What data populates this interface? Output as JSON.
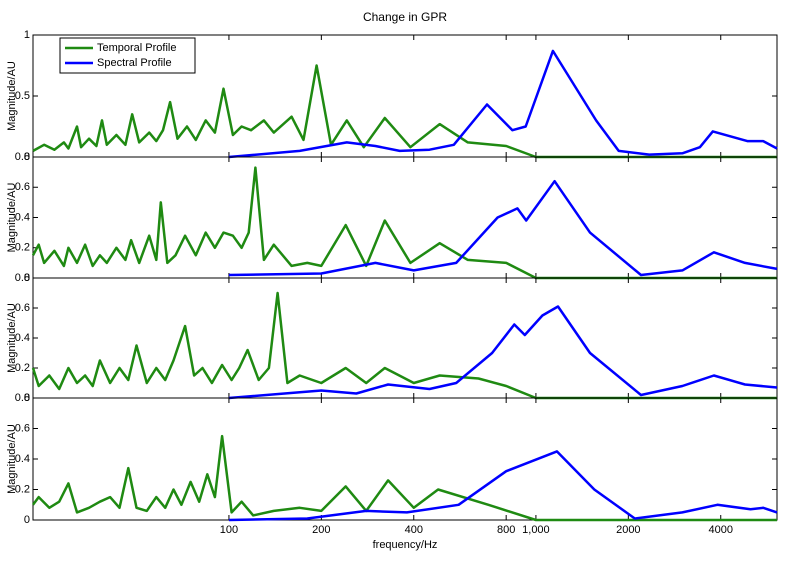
{
  "chart_data": [
    {
      "type": "line",
      "title": "Change in GPR",
      "ylabel": "Magnitude/AU",
      "log_x": true,
      "xlim": [
        23,
        6100
      ],
      "ylim": [
        0,
        1
      ],
      "yticks": [
        0,
        0.5,
        1
      ],
      "legend": "upper-left",
      "series": [
        {
          "name": "Temporal Profile",
          "color": "#1f8a12",
          "x": [
            23,
            25,
            27,
            29,
            30,
            32,
            33,
            35,
            37,
            38.6,
            40,
            43,
            46,
            48.4,
            51,
            55,
            58,
            61,
            64.3,
            68,
            73,
            78,
            84,
            90,
            96,
            103,
            110,
            118,
            130,
            140,
            160,
            175,
            193,
            215,
            242,
            275,
            322,
            390,
            486,
            600,
            800,
            1000,
            6100
          ],
          "values": [
            0.05,
            0.1,
            0.06,
            0.12,
            0.07,
            0.25,
            0.08,
            0.15,
            0.09,
            0.3,
            0.1,
            0.18,
            0.1,
            0.35,
            0.12,
            0.2,
            0.13,
            0.22,
            0.45,
            0.15,
            0.25,
            0.14,
            0.3,
            0.2,
            0.56,
            0.18,
            0.25,
            0.22,
            0.3,
            0.2,
            0.33,
            0.14,
            0.75,
            0.1,
            0.3,
            0.08,
            0.32,
            0.08,
            0.27,
            0.12,
            0.09,
            0,
            0
          ]
        },
        {
          "name": "Spectral Profile",
          "color": "#0000ff",
          "x": [
            100,
            170,
            242,
            300,
            360,
            450,
            540,
            693,
            838,
            926,
            1136,
            1570,
            1860,
            2340,
            3000,
            3420,
            3770,
            4880,
            5500,
            6100
          ],
          "values": [
            0,
            0.05,
            0.12,
            0.09,
            0.05,
            0.06,
            0.1,
            0.43,
            0.22,
            0.25,
            0.87,
            0.3,
            0.05,
            0.02,
            0.03,
            0.08,
            0.21,
            0.13,
            0.13,
            0.07
          ]
        }
      ]
    },
    {
      "type": "line",
      "ylabel": "Magnitude/AU",
      "log_x": true,
      "xlim": [
        23,
        6100
      ],
      "ylim": [
        0,
        0.8
      ],
      "yticks": [
        0,
        0.2,
        0.4,
        0.6,
        0.8
      ],
      "series": [
        {
          "color": "#1f8a12",
          "x": [
            23,
            24,
            25,
            27,
            29,
            30,
            32,
            34,
            36,
            38,
            40,
            43,
            46,
            48,
            51,
            55,
            58,
            60,
            63,
            67,
            72,
            78,
            84,
            90,
            96,
            103,
            110,
            116,
            122,
            130,
            140,
            160,
            180,
            200,
            240,
            280,
            322,
            390,
            486,
            600,
            800,
            1000,
            6100
          ],
          "values": [
            0.15,
            0.22,
            0.1,
            0.18,
            0.08,
            0.2,
            0.1,
            0.22,
            0.08,
            0.15,
            0.1,
            0.2,
            0.12,
            0.25,
            0.1,
            0.28,
            0.12,
            0.5,
            0.1,
            0.15,
            0.28,
            0.15,
            0.3,
            0.2,
            0.3,
            0.28,
            0.2,
            0.3,
            0.73,
            0.12,
            0.22,
            0.08,
            0.1,
            0.08,
            0.35,
            0.08,
            0.38,
            0.1,
            0.23,
            0.12,
            0.1,
            0,
            0
          ]
        },
        {
          "color": "#0000ff",
          "x": [
            100,
            200,
            300,
            400,
            550,
            750,
            870,
            930,
            1150,
            1500,
            2200,
            3000,
            3800,
            4800,
            6100
          ],
          "values": [
            0.02,
            0.03,
            0.1,
            0.05,
            0.1,
            0.4,
            0.46,
            0.38,
            0.64,
            0.3,
            0.02,
            0.05,
            0.17,
            0.1,
            0.06
          ]
        }
      ]
    },
    {
      "type": "line",
      "ylabel": "Magnitude/AU",
      "log_x": true,
      "xlim": [
        23,
        6100
      ],
      "ylim": [
        0,
        0.8
      ],
      "yticks": [
        0,
        0.2,
        0.4,
        0.6,
        0.8
      ],
      "series": [
        {
          "color": "#1f8a12",
          "x": [
            23,
            24,
            26,
            28,
            30,
            32,
            34,
            36,
            38,
            41,
            44,
            47,
            50,
            54,
            58,
            62,
            66,
            72,
            77,
            82,
            88,
            95,
            102,
            108,
            115,
            125,
            135,
            144,
            155,
            170,
            200,
            240,
            280,
            322,
            400,
            486,
            650,
            800,
            1000,
            6100
          ],
          "values": [
            0.2,
            0.08,
            0.15,
            0.06,
            0.2,
            0.1,
            0.15,
            0.08,
            0.25,
            0.1,
            0.2,
            0.12,
            0.35,
            0.1,
            0.2,
            0.12,
            0.25,
            0.48,
            0.15,
            0.2,
            0.1,
            0.22,
            0.12,
            0.2,
            0.32,
            0.12,
            0.2,
            0.7,
            0.1,
            0.15,
            0.1,
            0.2,
            0.1,
            0.2,
            0.1,
            0.15,
            0.13,
            0.08,
            0,
            0
          ]
        },
        {
          "color": "#0000ff",
          "x": [
            100,
            200,
            260,
            330,
            450,
            550,
            720,
            850,
            920,
            1050,
            1180,
            1500,
            2200,
            3000,
            3800,
            4800,
            6100
          ],
          "values": [
            0,
            0.05,
            0.03,
            0.09,
            0.06,
            0.1,
            0.3,
            0.49,
            0.42,
            0.55,
            0.61,
            0.3,
            0.02,
            0.08,
            0.15,
            0.09,
            0.07
          ]
        }
      ]
    },
    {
      "type": "line",
      "ylabel": "Magnitude/AU",
      "xlabel": "frequency/Hz",
      "log_x": true,
      "xlim": [
        23,
        6100
      ],
      "ylim": [
        0,
        0.8
      ],
      "yticks": [
        0,
        0.2,
        0.4,
        0.6,
        0.8
      ],
      "xticks": [
        100,
        200,
        400,
        800,
        {
          "value": 1000,
          "label": "1,000"
        },
        2000,
        4000
      ],
      "series": [
        {
          "color": "#1f8a12",
          "x": [
            23,
            24,
            26,
            28,
            30,
            32,
            35,
            38,
            41,
            44,
            47,
            50,
            54,
            58,
            62,
            66,
            70,
            75,
            80,
            85,
            90,
            95,
            102,
            110,
            120,
            140,
            170,
            200,
            240,
            280,
            330,
            400,
            480,
            700,
            1000,
            6100
          ],
          "values": [
            0.1,
            0.15,
            0.08,
            0.12,
            0.24,
            0.05,
            0.08,
            0.12,
            0.15,
            0.08,
            0.34,
            0.08,
            0.06,
            0.15,
            0.08,
            0.2,
            0.1,
            0.25,
            0.12,
            0.3,
            0.15,
            0.55,
            0.05,
            0.12,
            0.03,
            0.06,
            0.08,
            0.06,
            0.22,
            0.06,
            0.26,
            0.08,
            0.2,
            0.1,
            0,
            0
          ]
        },
        {
          "color": "#0000ff",
          "x": [
            100,
            180,
            280,
            380,
            560,
            800,
            1170,
            1550,
            2100,
            3000,
            3900,
            5000,
            5500,
            6100
          ],
          "values": [
            0,
            0.01,
            0.06,
            0.05,
            0.1,
            0.32,
            0.45,
            0.2,
            0.01,
            0.05,
            0.1,
            0.07,
            0.08,
            0.05
          ]
        }
      ]
    }
  ]
}
